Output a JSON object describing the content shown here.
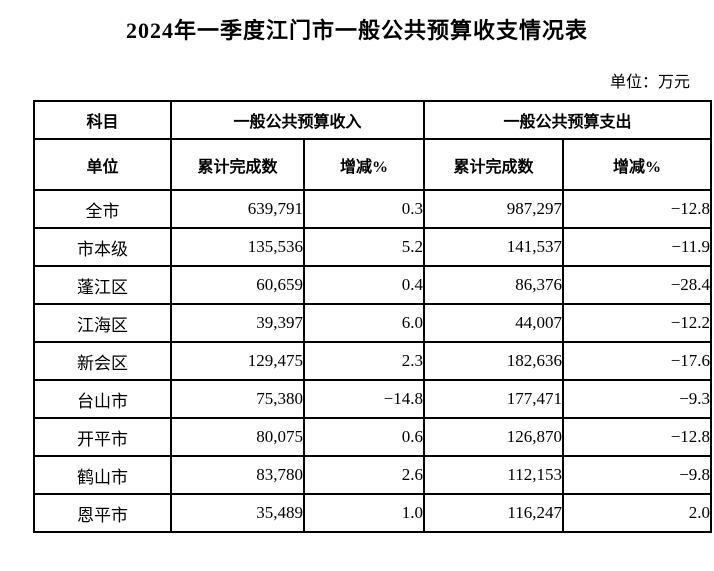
{
  "title": "2024年一季度江门市一般公共预算收支情况表",
  "unit_note": "单位：万元",
  "table": {
    "header": {
      "subject": "科目",
      "revenue_group": "一般公共预算收入",
      "expenditure_group": "一般公共预算支出",
      "unit": "单位",
      "revenue_cumulative": "累计完成数",
      "revenue_change": "增减%",
      "expenditure_cumulative": "累计完成数",
      "expenditure_change": "增减%"
    },
    "rows": [
      {
        "unit": "全市",
        "rev_cum": "639,791",
        "rev_chg": "0.3",
        "exp_cum": "987,297",
        "exp_chg": "−12.8"
      },
      {
        "unit": "市本级",
        "rev_cum": "135,536",
        "rev_chg": "5.2",
        "exp_cum": "141,537",
        "exp_chg": "−11.9"
      },
      {
        "unit": "蓬江区",
        "rev_cum": "60,659",
        "rev_chg": "0.4",
        "exp_cum": "86,376",
        "exp_chg": "−28.4"
      },
      {
        "unit": "江海区",
        "rev_cum": "39,397",
        "rev_chg": "6.0",
        "exp_cum": "44,007",
        "exp_chg": "−12.2"
      },
      {
        "unit": "新会区",
        "rev_cum": "129,475",
        "rev_chg": "2.3",
        "exp_cum": "182,636",
        "exp_chg": "−17.6"
      },
      {
        "unit": "台山市",
        "rev_cum": "75,380",
        "rev_chg": "−14.8",
        "exp_cum": "177,471",
        "exp_chg": "−9.3"
      },
      {
        "unit": "开平市",
        "rev_cum": "80,075",
        "rev_chg": "0.6",
        "exp_cum": "126,870",
        "exp_chg": "−12.8"
      },
      {
        "unit": "鹤山市",
        "rev_cum": "83,780",
        "rev_chg": "2.6",
        "exp_cum": "112,153",
        "exp_chg": "−9.8"
      },
      {
        "unit": "恩平市",
        "rev_cum": "35,489",
        "rev_chg": "1.0",
        "exp_cum": "116,247",
        "exp_chg": "2.0"
      }
    ]
  }
}
